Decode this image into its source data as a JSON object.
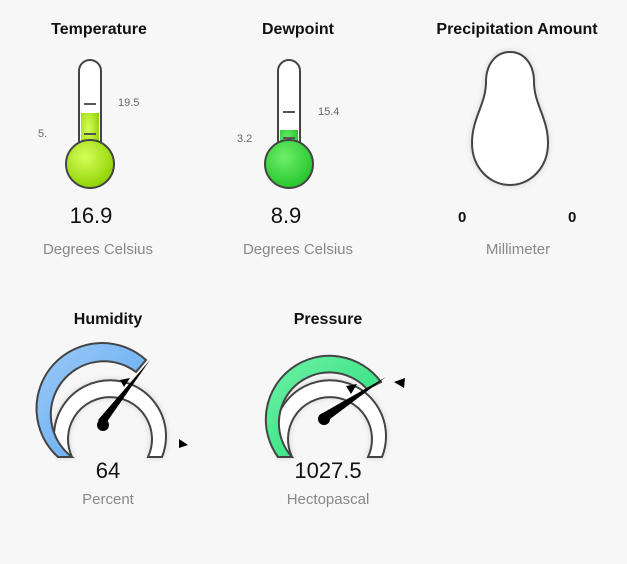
{
  "temperature": {
    "title": "Temperature",
    "value": "16.9",
    "unit": "Degrees Celsius",
    "low_label": "5.",
    "high_label": "19.5",
    "fill_fraction": 0.37,
    "fill_color": "#a8e41a"
  },
  "dewpoint": {
    "title": "Dewpoint",
    "value": "8.9",
    "unit": "Degrees Celsius",
    "low_label": "3.2",
    "high_label": "15.4",
    "fill_fraction": 0.31,
    "fill_color": "#36d63a"
  },
  "precipitation": {
    "title": "Precipitation Amount",
    "left_value": "0",
    "right_value": "0",
    "unit": "Millimeter"
  },
  "humidity": {
    "title": "Humidity",
    "value": "64",
    "unit": "Percent",
    "fill_color": "#6cb4f4",
    "needle_percent": 64
  },
  "pressure": {
    "title": "Pressure",
    "value": "1027.5",
    "unit": "Hectopascal",
    "fill_color": "#2ee882"
  }
}
